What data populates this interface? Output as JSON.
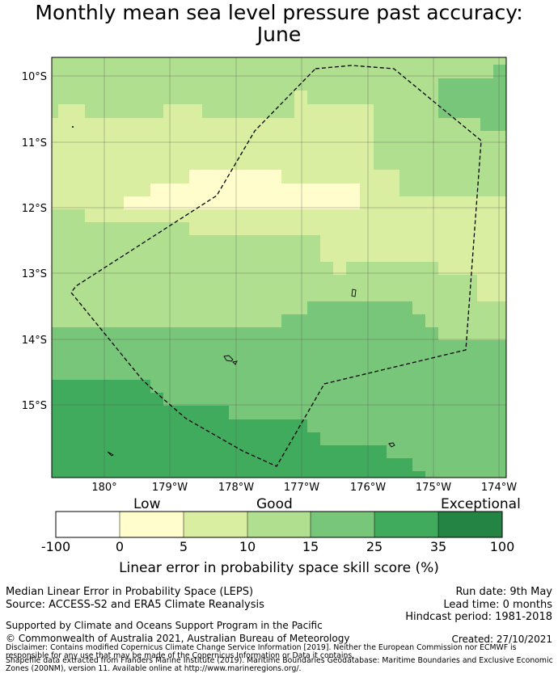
{
  "title": {
    "line1": "Monthly mean sea level pressure past accuracy:",
    "line2": "June"
  },
  "map": {
    "lat_labels": [
      "10°S",
      "11°S",
      "12°S",
      "13°S",
      "14°S",
      "15°S"
    ],
    "lon_labels": [
      "180°",
      "179°W",
      "178°W",
      "177°W",
      "176°W",
      "175°W",
      "174°W"
    ],
    "lon_range": [
      179.2,
      185.8
    ],
    "lat_range": [
      -16.2,
      -9.7
    ],
    "grid": true,
    "boundary_style": "dashed",
    "skill_zones": [
      {
        "band": "10-15",
        "color": "#b0df90"
      },
      {
        "band": "5-10",
        "color": "#d9eea0"
      },
      {
        "band": "0-5",
        "color": "#fffdcc"
      },
      {
        "band": "15-25",
        "color": "#78c679"
      },
      {
        "band": "25-35",
        "color": "#41ab5d"
      }
    ]
  },
  "colorbar": {
    "category_labels": {
      "low": "Low",
      "good": "Good",
      "exceptional": "Exceptional"
    },
    "ticks": [
      "-100",
      "0",
      "5",
      "10",
      "15",
      "25",
      "35",
      "100"
    ],
    "colors": [
      "#ffffff",
      "#fffdcc",
      "#d9eea0",
      "#b0df90",
      "#78c679",
      "#41ab5d",
      "#238443"
    ],
    "title": "Linear error in probability space skill score (%)"
  },
  "info": {
    "method": "Median Linear Error in Probability Space (LEPS)",
    "source": "Source: ACCESS-S2 and ERA5 Climate Reanalysis",
    "run_date": "Run date: 9th May",
    "lead_time": "Lead time: 0 months",
    "hindcast": "Hindcast period: 1981-2018",
    "support": "Supported by Climate and Oceans Support Program in the Pacific",
    "copyright": "© Commonwealth of Australia 2021, Australian Bureau of Meteorology",
    "created": "Created: 27/10/2021",
    "disclaimer_1": "Disclaimer: Contains modified Copernicus Climate Change Service Information [2019]. Neither the European Commission nor ECMWF is",
    "disclaimer_2": "responsible for any use that may be made of the Copernicus Information or Data it contains.",
    "disclaimer_3": "Shapefile data extracted from Flanders Marine Institute (2019). Maritime Boundaries Geodatabase: Maritime Boundaries and Exclusive Economic",
    "disclaimer_4": "Zones (200NM), version 11. Available online at http://www.marineregions.org/."
  }
}
